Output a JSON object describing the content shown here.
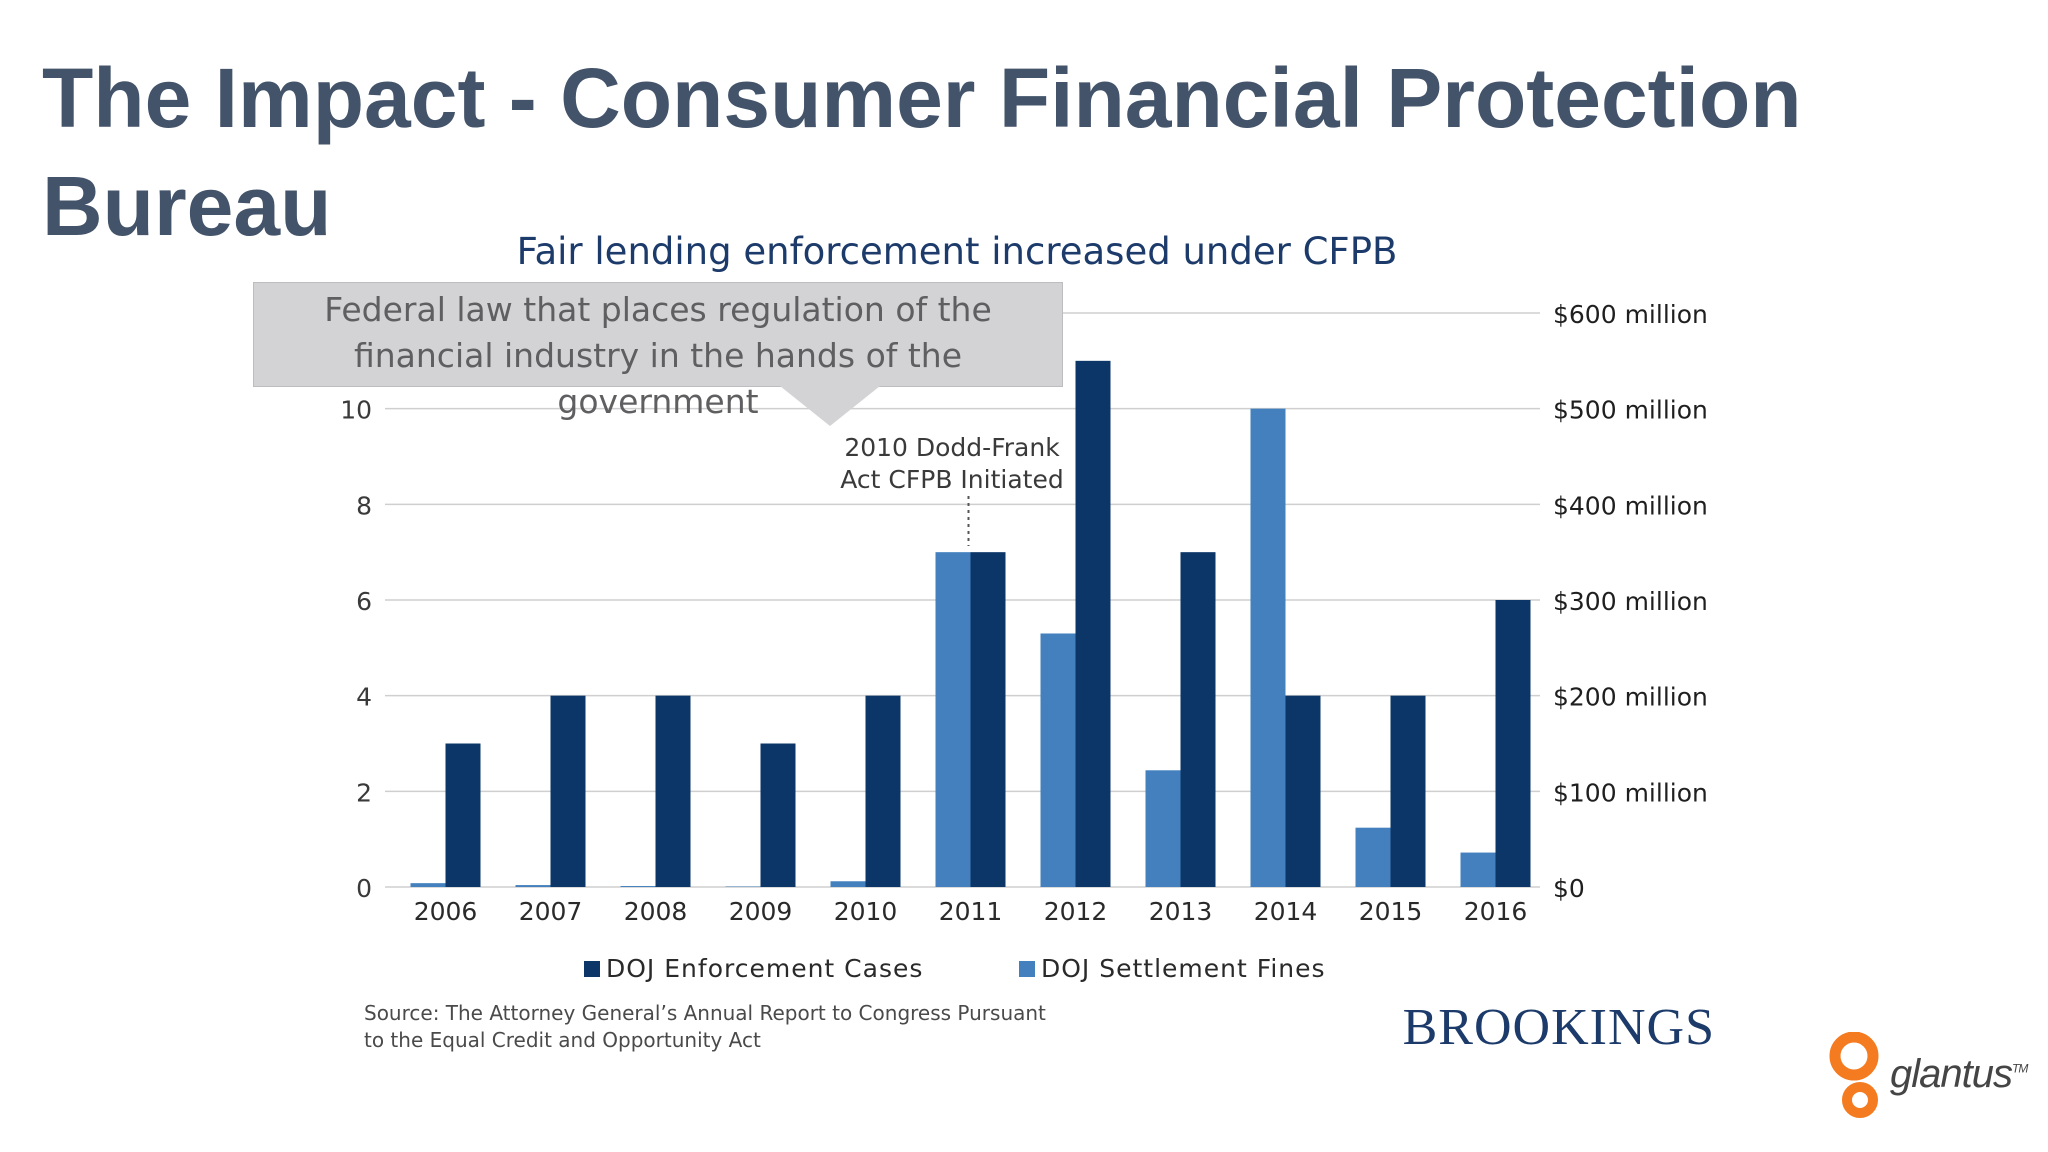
{
  "slide": {
    "title": "The Impact - Consumer Financial Protection Bureau"
  },
  "callout": {
    "text": "Federal law that places regulation of the financial industry in the hands of the government"
  },
  "source": {
    "line1": "Source: The Attorney General’s Annual Report to Congress Pursuant",
    "line2": "to the Equal Credit and Opportunity Act"
  },
  "brand": {
    "name": "BROOKINGS",
    "logo_text": "glantus",
    "logo_tm": "TM"
  },
  "colors": {
    "cases": "#0b3667",
    "fines": "#4380bd",
    "title": "#43536a",
    "chart_title": "#1c3b6b",
    "grid": "#cfcfcf",
    "logo_orange": "#f47b20"
  },
  "chart_data": {
    "type": "bar",
    "title": "Fair lending enforcement increased under CFPB",
    "categories": [
      "2006",
      "2007",
      "2008",
      "2009",
      "2010",
      "2011",
      "2012",
      "2013",
      "2014",
      "2015",
      "2016"
    ],
    "series": [
      {
        "name": "DOJ Settlement Fines",
        "axis": "right",
        "values": [
          4,
          2,
          1,
          0.5,
          6,
          350,
          265,
          122,
          500,
          62,
          36
        ]
      },
      {
        "name": "DOJ Enforcement Cases",
        "axis": "left",
        "values": [
          3,
          4,
          4,
          3,
          4,
          7,
          11,
          7,
          4,
          4,
          6
        ]
      }
    ],
    "left_axis": {
      "ylim": [
        0,
        12
      ],
      "ticks": [
        "0",
        "2",
        "4",
        "6",
        "8",
        "10"
      ]
    },
    "right_axis": {
      "ylim": [
        0,
        600
      ],
      "ticks": [
        "$0",
        "$100 million",
        "$200 million",
        "$300 million",
        "$400 million",
        "$500 million",
        "$600 million"
      ]
    },
    "legend": [
      "DOJ Enforcement Cases",
      "DOJ Settlement Fines"
    ],
    "legend_position": "bottom",
    "grid": true,
    "annotation": {
      "lines": [
        "2010 Dodd-Frank",
        "Act CFPB Initiated"
      ],
      "category": "2011"
    }
  }
}
